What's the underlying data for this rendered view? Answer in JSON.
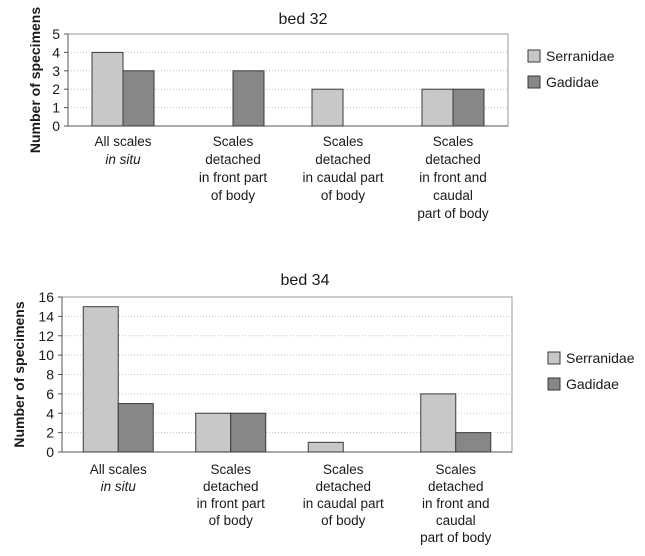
{
  "chart_data": [
    {
      "type": "bar",
      "title": "bed 32",
      "xlabel": "",
      "ylabel": "Number of specimens",
      "ylim": [
        0,
        5
      ],
      "yticks": [
        0,
        1,
        2,
        3,
        4,
        5
      ],
      "grid": "horizontal dotted",
      "legend_position": "right",
      "categories": [
        [
          "All scales",
          "in situ"
        ],
        [
          "Scales",
          "detached",
          "in front part",
          "of body"
        ],
        [
          "Scales",
          "detached",
          "in caudal part",
          "of body"
        ],
        [
          "Scales",
          "detached",
          "in front and",
          "caudal",
          "part of body"
        ]
      ],
      "category_italic_lines": [
        [
          1
        ],
        [],
        [],
        []
      ],
      "series": [
        {
          "name": "Serranidae",
          "color": "#c8c8c8",
          "values": [
            4,
            0,
            2,
            2
          ]
        },
        {
          "name": "Gadidae",
          "color": "#878787",
          "values": [
            3,
            3,
            0,
            2
          ]
        }
      ]
    },
    {
      "type": "bar",
      "title": "bed 34",
      "xlabel": "",
      "ylabel": "Number of specimens",
      "ylim": [
        0,
        16
      ],
      "yticks": [
        0,
        2,
        4,
        6,
        8,
        10,
        12,
        14,
        16
      ],
      "grid": "horizontal dotted",
      "legend_position": "right",
      "categories": [
        [
          "All scales",
          "in situ"
        ],
        [
          "Scales",
          "detached",
          "in front part",
          "of body"
        ],
        [
          "Scales",
          "detached",
          "in caudal part",
          "of body"
        ],
        [
          "Scales",
          "detached",
          "in front and",
          "caudal",
          "part of body"
        ]
      ],
      "category_italic_lines": [
        [
          1
        ],
        [],
        [],
        []
      ],
      "series": [
        {
          "name": "Serranidae",
          "color": "#c8c8c8",
          "values": [
            15,
            4,
            1,
            6
          ]
        },
        {
          "name": "Gadidae",
          "color": "#878787",
          "values": [
            5,
            4,
            0,
            2
          ]
        }
      ]
    }
  ]
}
